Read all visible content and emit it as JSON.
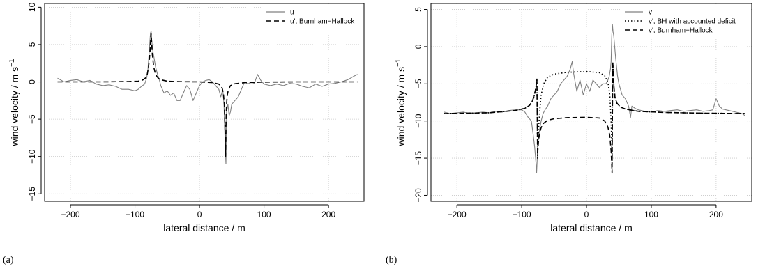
{
  "chart_data": [
    {
      "type": "line",
      "panel_label": "(a)",
      "xlabel": "lateral distance / m",
      "ylabel": "wind velocity / m s",
      "ylabel_sup": "−1",
      "xlim": [
        -240,
        255
      ],
      "ylim": [
        -16,
        10.5
      ],
      "xticks": [
        -200,
        -100,
        0,
        100,
        200
      ],
      "xtick_labels": [
        "−200",
        "−100",
        "0",
        "100",
        "200"
      ],
      "yticks": [
        -15,
        -10,
        -5,
        0,
        5,
        10
      ],
      "ytick_labels": [
        "−15",
        "−10",
        "−5",
        "0",
        "5",
        "10"
      ],
      "grid": true,
      "legend_position": "top-right",
      "series": [
        {
          "name": "u",
          "style": "solid",
          "color": "#808080",
          "x": [
            -220,
            -210,
            -200,
            -190,
            -180,
            -170,
            -160,
            -150,
            -140,
            -130,
            -120,
            -110,
            -100,
            -95,
            -90,
            -85,
            -82,
            -80,
            -78,
            -76,
            -75,
            -74,
            -72,
            -70,
            -68,
            -65,
            -62,
            -60,
            -55,
            -50,
            -45,
            -40,
            -35,
            -30,
            -25,
            -20,
            -15,
            -10,
            -5,
            0,
            5,
            10,
            15,
            20,
            25,
            30,
            33,
            36,
            38,
            40,
            41,
            42,
            44,
            46,
            48,
            50,
            55,
            60,
            65,
            70,
            75,
            80,
            85,
            90,
            95,
            100,
            110,
            120,
            130,
            140,
            150,
            160,
            170,
            180,
            190,
            200,
            210,
            220,
            230,
            240,
            245
          ],
          "y": [
            0.5,
            0.0,
            0.2,
            0.3,
            0.0,
            0.2,
            -0.3,
            -0.5,
            -0.4,
            -0.6,
            -1.0,
            -1.0,
            -1.2,
            -1.0,
            -0.6,
            -0.3,
            0.5,
            1.5,
            4.0,
            6.5,
            6.8,
            5.5,
            4.0,
            3.0,
            2.0,
            1.0,
            0.2,
            -0.5,
            -1.5,
            -1.2,
            -1.8,
            -1.5,
            -2.5,
            -2.5,
            -1.5,
            -0.5,
            -1.0,
            -2.5,
            -1.5,
            -0.5,
            0.0,
            0.2,
            0.3,
            0.0,
            -0.5,
            -1.0,
            -2.0,
            -1.0,
            -3.0,
            -9.0,
            -11.0,
            -4.0,
            -3.0,
            -4.5,
            -4.0,
            -3.0,
            -2.5,
            -2.0,
            -1.0,
            0.0,
            -0.3,
            0.0,
            -0.2,
            1.0,
            0.2,
            -0.3,
            -0.5,
            -0.3,
            -0.5,
            -0.2,
            -0.3,
            -0.6,
            -0.8,
            -0.3,
            -0.6,
            -0.3,
            -0.2,
            0.0,
            0.3,
            0.8,
            1.0
          ]
        },
        {
          "name": "u', Burnham−Hallock",
          "style": "dashed",
          "color": "#000000",
          "x": [
            -220,
            -150,
            -110,
            -95,
            -88,
            -84,
            -81,
            -79,
            -77,
            -76,
            -75,
            -74,
            -73,
            -71,
            -68,
            -64,
            -58,
            -50,
            -30,
            0,
            20,
            30,
            35,
            37,
            38.5,
            39.5,
            40.5,
            41,
            41.5,
            42,
            43,
            45,
            48,
            55,
            70,
            100,
            150,
            200,
            245
          ],
          "y": [
            0.0,
            0.0,
            0.05,
            0.1,
            0.25,
            0.5,
            1.0,
            2.0,
            3.6,
            5.0,
            6.5,
            5.0,
            3.6,
            2.0,
            1.0,
            0.5,
            0.25,
            0.1,
            0.03,
            0.0,
            -0.1,
            -0.3,
            -0.8,
            -1.5,
            -3.0,
            -6.0,
            -10.0,
            -6.0,
            -4.0,
            -3.0,
            -1.8,
            -1.0,
            -0.5,
            -0.25,
            -0.1,
            -0.03,
            0.0,
            0.0,
            0.0
          ]
        }
      ]
    },
    {
      "type": "line",
      "panel_label": "(b)",
      "xlabel": "lateral distance / m",
      "ylabel": "wind velocity / m s",
      "ylabel_sup": "−1",
      "xlim": [
        -240,
        255
      ],
      "ylim": [
        -20.8,
        5.8
      ],
      "xticks": [
        -200,
        -100,
        0,
        100,
        200
      ],
      "xtick_labels": [
        "−200",
        "−100",
        "0",
        "100",
        "200"
      ],
      "yticks": [
        -20,
        -15,
        -10,
        -5,
        0,
        5
      ],
      "ytick_labels": [
        "−20",
        "−15",
        "−10",
        "−5",
        "0",
        "5"
      ],
      "grid": true,
      "legend_position": "top-right",
      "series": [
        {
          "name": "v",
          "style": "solid",
          "color": "#808080",
          "x": [
            -220,
            -210,
            -200,
            -190,
            -180,
            -170,
            -160,
            -150,
            -140,
            -130,
            -120,
            -110,
            -100,
            -95,
            -90,
            -85,
            -82,
            -80,
            -78,
            -77,
            -76,
            -75,
            -74,
            -72,
            -70,
            -67,
            -64,
            -60,
            -55,
            -50,
            -45,
            -40,
            -35,
            -30,
            -25,
            -22,
            -20,
            -15,
            -10,
            -5,
            0,
            5,
            10,
            15,
            20,
            25,
            30,
            33,
            35,
            37,
            38,
            39,
            40,
            41,
            42,
            43,
            45,
            48,
            50,
            55,
            60,
            65,
            68,
            70,
            75,
            80,
            90,
            100,
            110,
            120,
            130,
            140,
            150,
            160,
            170,
            180,
            190,
            195,
            200,
            205,
            210,
            220,
            230,
            240,
            245
          ],
          "y": [
            -8.8,
            -9.0,
            -8.9,
            -8.8,
            -9.0,
            -8.9,
            -8.8,
            -8.9,
            -8.7,
            -8.8,
            -8.6,
            -8.5,
            -8.5,
            -8.8,
            -9.5,
            -10.0,
            -12.0,
            -13.5,
            -15.5,
            -17.0,
            -15.0,
            -13.0,
            -12.0,
            -11.0,
            -10.0,
            -9.0,
            -8.5,
            -8.0,
            -7.0,
            -6.5,
            -6.0,
            -5.0,
            -4.5,
            -4.0,
            -3.0,
            -2.0,
            -3.5,
            -6.0,
            -4.5,
            -6.5,
            -5.0,
            -6.0,
            -4.5,
            -5.0,
            -5.5,
            -5.0,
            -5.0,
            -4.5,
            -4.0,
            -3.0,
            -2.0,
            1.5,
            3.0,
            2.0,
            1.5,
            0.5,
            -1.5,
            -4.0,
            -5.0,
            -6.5,
            -7.0,
            -8.0,
            -9.5,
            -8.0,
            -8.3,
            -8.5,
            -8.7,
            -8.8,
            -8.6,
            -8.7,
            -8.6,
            -8.5,
            -8.7,
            -8.6,
            -8.5,
            -8.7,
            -8.6,
            -8.5,
            -7.0,
            -8.0,
            -8.4,
            -8.6,
            -8.8,
            -9.0,
            -9.3
          ]
        },
        {
          "name": "v', BH with accounted deficit",
          "style": "dotted",
          "color": "#000000",
          "x": [
            -220,
            -150,
            -110,
            -95,
            -88,
            -84,
            -81,
            -79,
            -77,
            -76.5,
            -75.5,
            -74.5,
            -73.5,
            -72,
            -70,
            -66,
            -60,
            -50,
            -30,
            0,
            20,
            28,
            33,
            36,
            38,
            39,
            39.5,
            40.5,
            41.5,
            42.5,
            44,
            47,
            52,
            60,
            80,
            120,
            180,
            245
          ],
          "y": [
            -9.0,
            -8.9,
            -8.6,
            -8.3,
            -7.9,
            -7.4,
            -6.7,
            -5.9,
            -4.9,
            -4.3,
            -15.0,
            -12.5,
            -10.5,
            -8.5,
            -6.5,
            -5.0,
            -4.1,
            -3.7,
            -3.45,
            -3.35,
            -3.5,
            -3.9,
            -4.8,
            -6.5,
            -10.0,
            -13.5,
            -16.5,
            -2.0,
            -4.0,
            -5.5,
            -6.8,
            -7.6,
            -8.1,
            -8.4,
            -8.7,
            -8.85,
            -8.95,
            -9.0
          ]
        },
        {
          "name": "v', Burnham−Hallock",
          "style": "dashed",
          "color": "#000000",
          "x": [
            -220,
            -150,
            -110,
            -95,
            -88,
            -84,
            -81,
            -79,
            -77,
            -76.5,
            -75.5,
            -74.5,
            -73.5,
            -72,
            -70,
            -66,
            -60,
            -50,
            -30,
            0,
            20,
            28,
            33,
            36,
            38,
            39,
            39.5,
            40.5,
            41.5,
            42.5,
            44,
            47,
            52,
            60,
            80,
            120,
            180,
            245
          ],
          "y": [
            -9.0,
            -8.9,
            -8.6,
            -8.3,
            -7.9,
            -7.4,
            -6.7,
            -5.9,
            -4.9,
            -4.3,
            -14.5,
            -13.2,
            -12.3,
            -11.5,
            -10.9,
            -10.3,
            -9.9,
            -9.7,
            -9.55,
            -9.5,
            -9.6,
            -10.0,
            -10.8,
            -12.0,
            -14.0,
            -16.0,
            -17.0,
            -2.0,
            -4.0,
            -5.5,
            -6.8,
            -7.6,
            -8.1,
            -8.4,
            -8.7,
            -8.85,
            -8.95,
            -9.0
          ]
        }
      ]
    }
  ]
}
